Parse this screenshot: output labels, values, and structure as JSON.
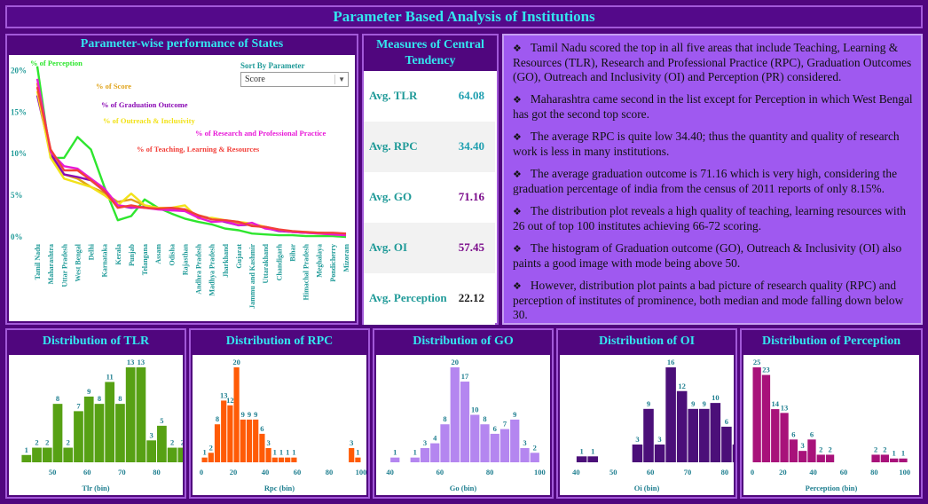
{
  "page": {
    "title": "Parameter Based Analysis of Institutions"
  },
  "colors": {
    "background": "#50067e",
    "accent_text": "#33e6f0",
    "insight_panel": "#9f59f0"
  },
  "line_panel": {
    "title": "Parameter-wise performance of States",
    "sort_label": "Sort By Parameter",
    "sort_value": "Score",
    "sort_icon": "chevron-down-icon"
  },
  "central_tendency": {
    "title": "Measures of Central Tendency",
    "rows": [
      {
        "label": "Avg. TLR",
        "value": "64.08",
        "color": "#1f9fb0"
      },
      {
        "label": "Avg. RPC",
        "value": "34.40",
        "color": "#1f9fb0"
      },
      {
        "label": "Avg. GO",
        "value": "71.16",
        "color": "#7a0a8a"
      },
      {
        "label": "Avg. OI",
        "value": "57.45",
        "color": "#7a0a8a"
      },
      {
        "label": "Avg. Perception",
        "value": "22.12",
        "color": "#1a1a1a"
      }
    ]
  },
  "insights": {
    "bullet_icon": "diamond-bullet-icon",
    "items": [
      "Tamil Nadu scored the top in all five areas that include Teaching, Learning & Resources (TLR), Research and Professional Practice (RPC), Graduation Outcomes (GO), Outreach and Inclusivity (OI) and Perception (PR) considered.",
      "Maharashtra came second in the list except for Perception in which West Bengal has got the second top score.",
      "The average RPC is quite low 34.40; thus the quantity and quality of research work is less in many institutions.",
      "The average graduation outcome is 71.16 which is very high, considering the graduation percentage of india from the census of 2011 reports of only 8.15%.",
      "The distribution plot reveals a high quality of teaching, learning resources with 26 out of top 100 institutes achieving 66-72 scoring.",
      "The histogram of Graduation outcome (GO), Outreach & Inclusivity (OI) also paints a good image with mode being above 50.",
      "However, distribution plot paints a bad picture of research quality (RPC) and perception of institutes of prominence, both median and mode falling down below 30."
    ]
  },
  "chart_data": [
    {
      "type": "line",
      "title": "Parameter-wise performance of States",
      "categories": [
        "Tamil Nadu",
        "Maharashtra",
        "Uttar Pradesh",
        "West Bengal",
        "Delhi",
        "Karnataka",
        "Kerala",
        "Punjab",
        "Telangana",
        "Assam",
        "Odisha",
        "Rajasthan",
        "Andhra Pradesh",
        "Madhya Pradesh",
        "Jharkhand",
        "Gujarat",
        "Jammu and Kashmir",
        "Uttarakhand",
        "Chandigarh",
        "Bihar",
        "Himachal Pradesh",
        "Meghalaya",
        "Pondicherry",
        "Mizoram"
      ],
      "y_ticks": [
        "0%",
        "5%",
        "10%",
        "15%",
        "20%"
      ],
      "ylim": [
        0,
        21
      ],
      "series": [
        {
          "name": "% of Perception",
          "color": "#2ee62e",
          "values": [
            20.5,
            9.5,
            9.5,
            12,
            10.5,
            6,
            2,
            2.5,
            4.5,
            3.5,
            2.8,
            2.2,
            1.8,
            1.5,
            1,
            0.8,
            0.4,
            0.3,
            0.2,
            0.2,
            0.1,
            0.1,
            0.1,
            0
          ]
        },
        {
          "name": "% of Score",
          "color": "#e0a31a",
          "values": [
            18.5,
            9.8,
            7.5,
            7,
            6,
            5.3,
            4.2,
            4.5,
            3.8,
            3.5,
            3.3,
            3.2,
            2.6,
            2.2,
            1.8,
            1.6,
            1.4,
            1.1,
            0.8,
            0.6,
            0.5,
            0.4,
            0.3,
            0.2
          ]
        },
        {
          "name": "% of Graduation Outcome",
          "color": "#8a0ab4",
          "values": [
            17,
            10,
            7.5,
            7.2,
            6.8,
            5.5,
            3.8,
            3.5,
            3.6,
            3.4,
            3.2,
            3.3,
            2.5,
            2.2,
            1.8,
            1.4,
            1.5,
            1.1,
            0.7,
            0.6,
            0.5,
            0.5,
            0.4,
            0.3
          ]
        },
        {
          "name": "% of Outreach & Inclusivity",
          "color": "#f2e21a",
          "values": [
            17.5,
            9.5,
            7,
            6.5,
            6,
            5,
            3.8,
            5.2,
            3.8,
            3.5,
            3.5,
            3.8,
            2.2,
            2.3,
            2,
            1.8,
            1.6,
            1.2,
            0.8,
            0.6,
            0.6,
            0.5,
            0.4,
            0.3
          ]
        },
        {
          "name": "% of Research and Professional Practice",
          "color": "#e81ad8",
          "values": [
            19,
            10.2,
            8.5,
            8.2,
            7,
            5.8,
            3.8,
            3.6,
            3.5,
            3.3,
            3.2,
            3.1,
            2.3,
            1.8,
            1.9,
            1.4,
            1.7,
            1,
            0.8,
            0.6,
            0.5,
            0.4,
            0.3,
            0.2
          ]
        },
        {
          "name": "% of Teaching, Learning & Resources",
          "color": "#f2403a",
          "values": [
            18,
            10.5,
            8,
            8,
            6.8,
            5.5,
            3.5,
            3.8,
            3.5,
            3.4,
            3.5,
            3.3,
            2.6,
            2.1,
            2,
            1.8,
            1.3,
            1.2,
            0.9,
            0.7,
            0.6,
            0.5,
            0.5,
            0.4
          ]
        }
      ]
    },
    {
      "type": "bar",
      "title": "Distribution of TLR",
      "xlabel": "Tlr (bin)",
      "color": "#57a114",
      "bin_start": 41,
      "bin_width": 3,
      "xlim": [
        40,
        86
      ],
      "x_ticks": [
        50,
        60,
        70,
        80
      ],
      "values": [
        1,
        2,
        2,
        8,
        2,
        7,
        9,
        8,
        11,
        8,
        13,
        13,
        3,
        5,
        2,
        2,
        4
      ],
      "label_all": true
    },
    {
      "type": "bar",
      "title": "Distribution of RPC",
      "xlabel": "Rpc (bin)",
      "color": "#ff5b06",
      "bin_start": 0,
      "bin_width": 4,
      "xlim": [
        0,
        100
      ],
      "x_ticks": [
        0,
        20,
        40,
        60,
        80,
        100
      ],
      "values": [
        1,
        2,
        8,
        13,
        12,
        20,
        9,
        9,
        9,
        6,
        3,
        1,
        1,
        1,
        1,
        0,
        0,
        0,
        0,
        0,
        0,
        0,
        0,
        0,
        0
      ],
      "extra_bars": [
        {
          "x": 92,
          "value": 3
        },
        {
          "x": 96,
          "value": 1
        }
      ],
      "label_all": true
    },
    {
      "type": "bar",
      "title": "Distribution of GO",
      "xlabel": "Go (bin)",
      "color": "#b486f0",
      "bin_start": 40,
      "bin_width": 4,
      "xlim": [
        38,
        102
      ],
      "x_ticks": [
        40,
        60,
        80,
        100
      ],
      "values": [
        1,
        0,
        1,
        3,
        4,
        8,
        20,
        17,
        10,
        8,
        6,
        7,
        9,
        3,
        2,
        0,
        1
      ],
      "label_all": true
    },
    {
      "type": "bar",
      "title": "Distribution of OI",
      "xlabel": "Oi (bin)",
      "color": "#4b0f79",
      "bin_start": 40,
      "bin_width": 3,
      "xlim": [
        38,
        81
      ],
      "x_ticks": [
        40,
        50,
        60,
        70,
        80
      ],
      "values": [
        1,
        1,
        0,
        0,
        0,
        3,
        9,
        3,
        16,
        12,
        9,
        9,
        10,
        6,
        3,
        1,
        2,
        3,
        3,
        1
      ],
      "label_all": true
    },
    {
      "type": "bar",
      "title": "Distribution of Perception",
      "xlabel": "Perception (bin)",
      "color": "#a8127a",
      "bin_start": 0,
      "bin_width": 6,
      "xlim": [
        0,
        106
      ],
      "x_ticks": [
        0,
        20,
        40,
        60,
        80,
        100
      ],
      "values": [
        25,
        23,
        14,
        13,
        6,
        3,
        6,
        2,
        2,
        0,
        0,
        0,
        0,
        2,
        2,
        1,
        1
      ],
      "label_all": true
    }
  ]
}
